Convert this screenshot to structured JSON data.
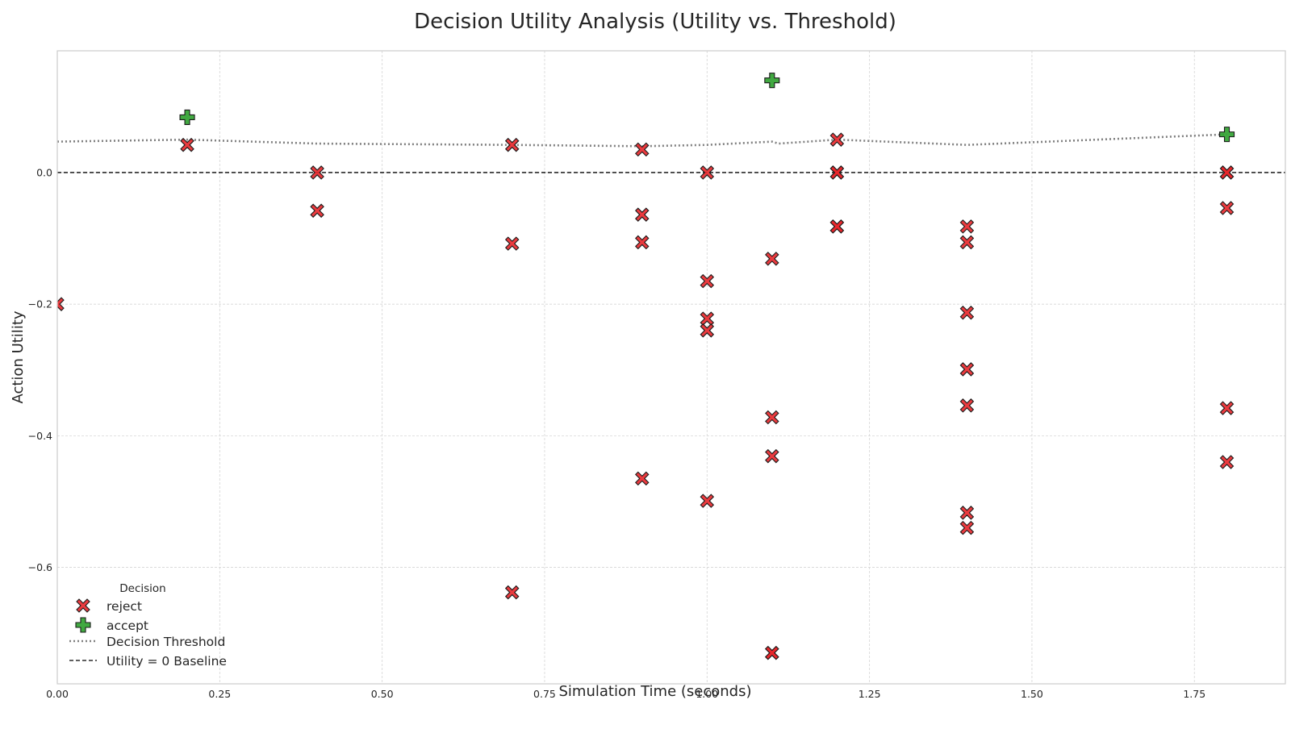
{
  "chart_data": {
    "type": "scatter",
    "title": "Decision Utility Analysis (Utility vs. Threshold)",
    "xlabel": "Simulation Time (seconds)",
    "ylabel": "Action Utility",
    "xlim": [
      0.0,
      1.89
    ],
    "ylim": [
      -0.777,
      0.185
    ],
    "x_ticks": [
      0.0,
      0.25,
      0.5,
      0.75,
      1.0,
      1.25,
      1.5,
      1.75
    ],
    "x_tick_labels": [
      "0.00",
      "0.25",
      "0.50",
      "0.75",
      "1.00",
      "1.25",
      "1.50",
      "1.75"
    ],
    "y_ticks": [
      0.0,
      -0.2,
      -0.4,
      -0.6
    ],
    "y_tick_labels": [
      "0.0",
      "−0.2",
      "−0.4",
      "−0.6"
    ],
    "grid": true,
    "legend": {
      "title": "Decision",
      "placement": "lower-left",
      "entries": [
        "reject",
        "accept",
        "Decision Threshold",
        "Utility = 0 Baseline"
      ]
    },
    "colors": {
      "reject": "#e8262a",
      "accept": "#2ca02c",
      "threshold": "#808080",
      "baseline": "#000000",
      "grid": "#d5d5d5",
      "frame": "#cccccc",
      "text": "#262626"
    },
    "series": [
      {
        "name": "reject",
        "marker": "X",
        "points": [
          [
            0.0,
            -0.2
          ],
          [
            0.2,
            0.042
          ],
          [
            0.4,
            0.0
          ],
          [
            0.4,
            -0.058
          ],
          [
            0.7,
            0.042
          ],
          [
            0.7,
            -0.108
          ],
          [
            0.7,
            -0.638
          ],
          [
            0.9,
            0.035
          ],
          [
            0.9,
            -0.064
          ],
          [
            0.9,
            -0.106
          ],
          [
            0.9,
            -0.465
          ],
          [
            1.0,
            0.0
          ],
          [
            1.0,
            -0.165
          ],
          [
            1.0,
            -0.222
          ],
          [
            1.0,
            -0.24
          ],
          [
            1.0,
            -0.499
          ],
          [
            1.1,
            -0.131
          ],
          [
            1.1,
            -0.372
          ],
          [
            1.1,
            -0.431
          ],
          [
            1.1,
            -0.73
          ],
          [
            1.1,
            -0.73
          ],
          [
            1.2,
            0.05
          ],
          [
            1.2,
            0.0
          ],
          [
            1.2,
            0.0
          ],
          [
            1.2,
            -0.082
          ],
          [
            1.2,
            -0.082
          ],
          [
            1.4,
            -0.082
          ],
          [
            1.4,
            -0.106
          ],
          [
            1.4,
            -0.213
          ],
          [
            1.4,
            -0.299
          ],
          [
            1.4,
            -0.354
          ],
          [
            1.4,
            -0.517
          ],
          [
            1.4,
            -0.54
          ],
          [
            1.8,
            0.0
          ],
          [
            1.8,
            0.0
          ],
          [
            1.8,
            -0.054
          ],
          [
            1.8,
            -0.358
          ],
          [
            1.8,
            -0.44
          ]
        ]
      },
      {
        "name": "accept",
        "marker": "P",
        "points": [
          [
            0.2,
            0.084
          ],
          [
            1.1,
            0.14
          ],
          [
            1.8,
            0.058
          ]
        ]
      }
    ],
    "threshold_line": {
      "name": "Decision Threshold",
      "x": [
        0.0,
        0.2,
        0.4,
        0.7,
        0.9,
        1.0,
        1.1,
        1.11,
        1.2,
        1.4,
        1.8
      ],
      "y": [
        0.047,
        0.05,
        0.044,
        0.042,
        0.04,
        0.042,
        0.047,
        0.044,
        0.05,
        0.042,
        0.058
      ]
    },
    "baseline_line": {
      "name": "Utility = 0 Baseline",
      "y": 0.0
    }
  }
}
